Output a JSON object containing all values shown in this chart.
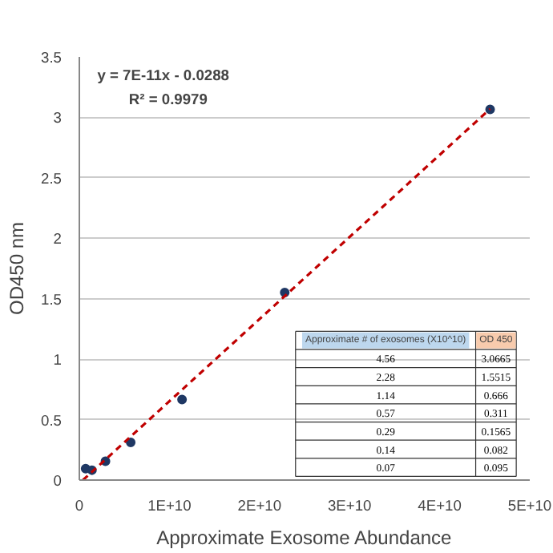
{
  "chart_data": {
    "type": "scatter",
    "xlabel": "Approximate Exosome Abundance",
    "ylabel": "OD450 nm",
    "x": [
      45600000000.0,
      22800000000.0,
      11400000000.0,
      5700000000.0,
      2900000000.0,
      1400000000.0,
      700000000.0
    ],
    "series": [
      {
        "type": "scatter",
        "color": "#1f3864",
        "values": [
          3.0665,
          1.5515,
          0.666,
          0.311,
          0.1565,
          0.082,
          0.095
        ]
      },
      {
        "type": "line",
        "color": "#c00000",
        "line_style": "dashed",
        "marker": "none",
        "x": [
          400000000.0,
          45600000000.0
        ],
        "values": [
          0.0,
          3.07
        ]
      }
    ],
    "xlim": [
      0,
      50000000000.0
    ],
    "xticks": [
      0,
      {
        "value": 10000000000.0,
        "label": "1E+10"
      },
      {
        "value": 20000000000.0,
        "label": "2E+10"
      },
      {
        "value": 30000000000.0,
        "label": "3E+10"
      },
      {
        "value": 40000000000.0,
        "label": "4E+10"
      },
      {
        "value": 50000000000.0,
        "label": "5E+10"
      }
    ],
    "ylim": [
      0,
      3.5
    ],
    "yticks": [
      0,
      0.5,
      1,
      1.5,
      2,
      2.5,
      3,
      3.5
    ],
    "grid": "y",
    "marker": "circle",
    "annotations": [
      "y = 7E-11x - 0.0288",
      "R² = 0.9979",
      "Approximate # of exosomes (X10^10)",
      "OD 450",
      "4.56",
      "2.28",
      "1.14",
      "0.57",
      "0.29",
      "0.14",
      "0.07",
      "3.0665",
      "1.5515",
      "0.666",
      "0.311",
      "0.1565",
      "0.082",
      "0.095"
    ]
  }
}
